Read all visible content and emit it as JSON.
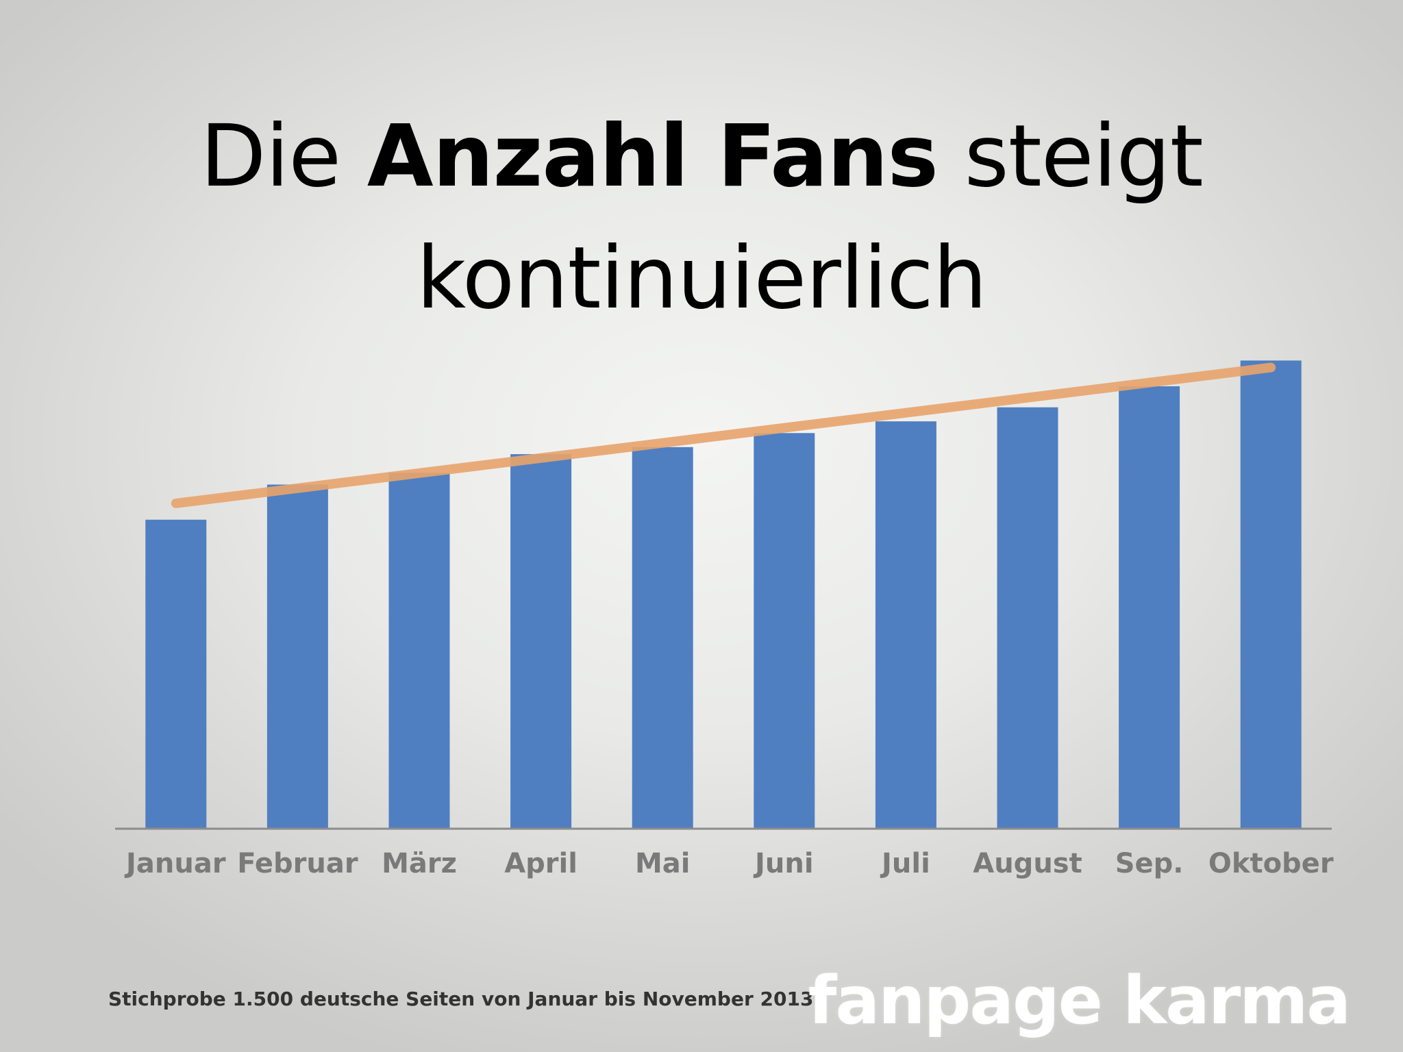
{
  "slide": {
    "title_part1": "Die ",
    "title_bold": "Anzahl Fans",
    "title_part2": " steigt",
    "title_line2": "kontinuierlich",
    "footnote": "Stichprobe 1.500 deutsche Seiten von Januar bis November 2013",
    "logo_text": "fanpage karma"
  },
  "colors": {
    "bar": "#4f7fc1",
    "trendline": "#e8a46c",
    "axis": "#8c8c8c",
    "tick_label": "#7a7a7a"
  },
  "chart_data": {
    "type": "bar",
    "categories": [
      "Januar",
      "Februar",
      "März",
      "April",
      "Mai",
      "Juni",
      "Juli",
      "August",
      "Sep.",
      "Oktober"
    ],
    "values": [
      66,
      73.5,
      76,
      80,
      81.5,
      84.5,
      87,
      90,
      94.5,
      100
    ],
    "ylim": [
      0,
      110
    ],
    "trendline": {
      "type": "linear",
      "start": 69.5,
      "end": 98.5
    },
    "grid": false,
    "legend": "none",
    "xlabel": "",
    "ylabel": ""
  }
}
